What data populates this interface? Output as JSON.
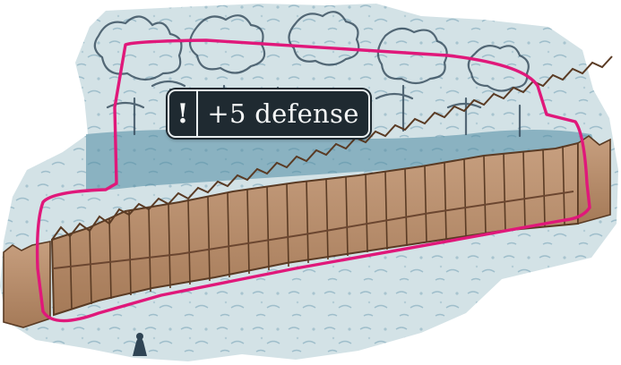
{
  "tooltip": {
    "alert_symbol": "!",
    "text": "+5 defense",
    "icon": "exclamation-icon"
  },
  "scene": {
    "subject": "wooden-palisade-tile",
    "highlight_color": "#e0187a",
    "snow_color": "#c9dbe0",
    "ground_color": "#dfe9ec",
    "wood_color": "#b88d6a",
    "tooltip_bg": "#1f2a31"
  }
}
